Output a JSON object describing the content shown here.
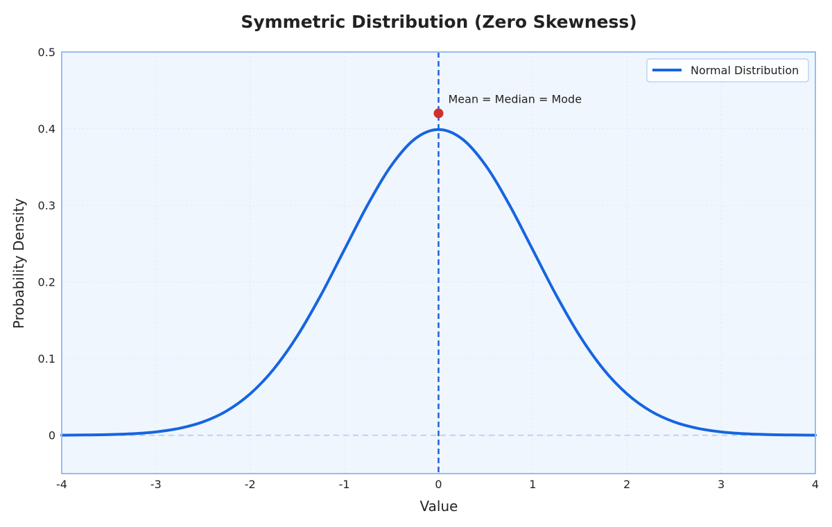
{
  "chart_data": {
    "type": "line",
    "title": "Symmetric Distribution (Zero Skewness)",
    "xlabel": "Value",
    "ylabel": "Probability Density",
    "xlim": [
      -4,
      4
    ],
    "ylim": [
      -0.05,
      0.5
    ],
    "xticks": [
      -4,
      -3,
      -2,
      -1,
      0,
      1,
      2,
      3,
      4
    ],
    "xtick_labels": [
      "-4",
      "-3",
      "-2",
      "-1",
      "0",
      "1",
      "2",
      "3",
      "4"
    ],
    "yticks": [
      0,
      0.1,
      0.2,
      0.3,
      0.4,
      0.5
    ],
    "ytick_labels": [
      "0",
      "0.1",
      "0.2",
      "0.3",
      "0.4",
      "0.5"
    ],
    "grid": true,
    "legend_position": "top-right",
    "series": [
      {
        "name": "Normal Distribution",
        "color": "#1565e0",
        "x": [
          -4,
          -3.75,
          -3.5,
          -3.25,
          -3,
          -2.75,
          -2.5,
          -2.25,
          -2,
          -1.75,
          -1.5,
          -1.25,
          -1,
          -0.75,
          -0.5,
          -0.25,
          0,
          0.25,
          0.5,
          0.75,
          1,
          1.25,
          1.5,
          1.75,
          2,
          2.25,
          2.5,
          2.75,
          3,
          3.25,
          3.5,
          3.75,
          4
        ],
        "y": [
          0.0001,
          0.0004,
          0.0009,
          0.002,
          0.0044,
          0.0091,
          0.0175,
          0.0317,
          0.054,
          0.0863,
          0.1295,
          0.1826,
          0.242,
          0.3011,
          0.3521,
          0.3867,
          0.3989,
          0.3867,
          0.3521,
          0.3011,
          0.242,
          0.1826,
          0.1295,
          0.0863,
          0.054,
          0.0317,
          0.0175,
          0.0091,
          0.0044,
          0.002,
          0.0009,
          0.0004,
          0.0001
        ]
      }
    ],
    "reference_lines": [
      {
        "orientation": "vertical",
        "value": 0,
        "style": "dashed",
        "color": "#1f5fdb"
      },
      {
        "orientation": "horizontal",
        "value": 0,
        "style": "dashed",
        "color": "#b9d3f3"
      }
    ],
    "annotations": [
      {
        "text": "Mean = Median = Mode",
        "x": 0,
        "y": 0.42,
        "marker_color": "#d32f2f"
      }
    ],
    "colors": {
      "plot_background": "#f0f6fd",
      "plot_border": "#94bdf2",
      "grid": "#dde6f2"
    }
  }
}
